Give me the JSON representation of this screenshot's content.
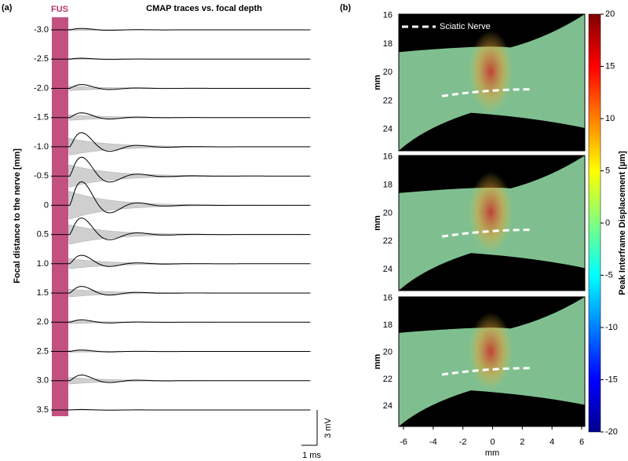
{
  "panel_a": {
    "label": "(a)",
    "title": "CMAP traces vs. focal depth",
    "stim_label": "FUS",
    "y_label": "Focal distance to the nerve [mm]",
    "trace_labels": [
      "-3.0",
      "-2.5",
      "-2.0",
      "-1.5",
      "-1.0",
      "-0.5",
      "0",
      "0.5",
      "1.0",
      "1.5",
      "2.0",
      "2.5",
      "3.0",
      "3.5"
    ],
    "scale_v": "3 mV",
    "scale_t": "1 ms"
  },
  "panel_b": {
    "label": "(b)",
    "legend": "Sciatic Nerve",
    "y_label": "mm",
    "x_label": "mm",
    "yticks": [
      "16",
      "18",
      "20",
      "22",
      "24"
    ],
    "xticks": [
      "-6",
      "-4",
      "-2",
      "0",
      "2",
      "4",
      "6"
    ],
    "colorbar_label": "Peak Interframe Displacement [µm]",
    "colorbar_ticks": [
      "20",
      "15",
      "10",
      "5",
      "0",
      "-5",
      "-10",
      "-15",
      "-20"
    ]
  }
}
